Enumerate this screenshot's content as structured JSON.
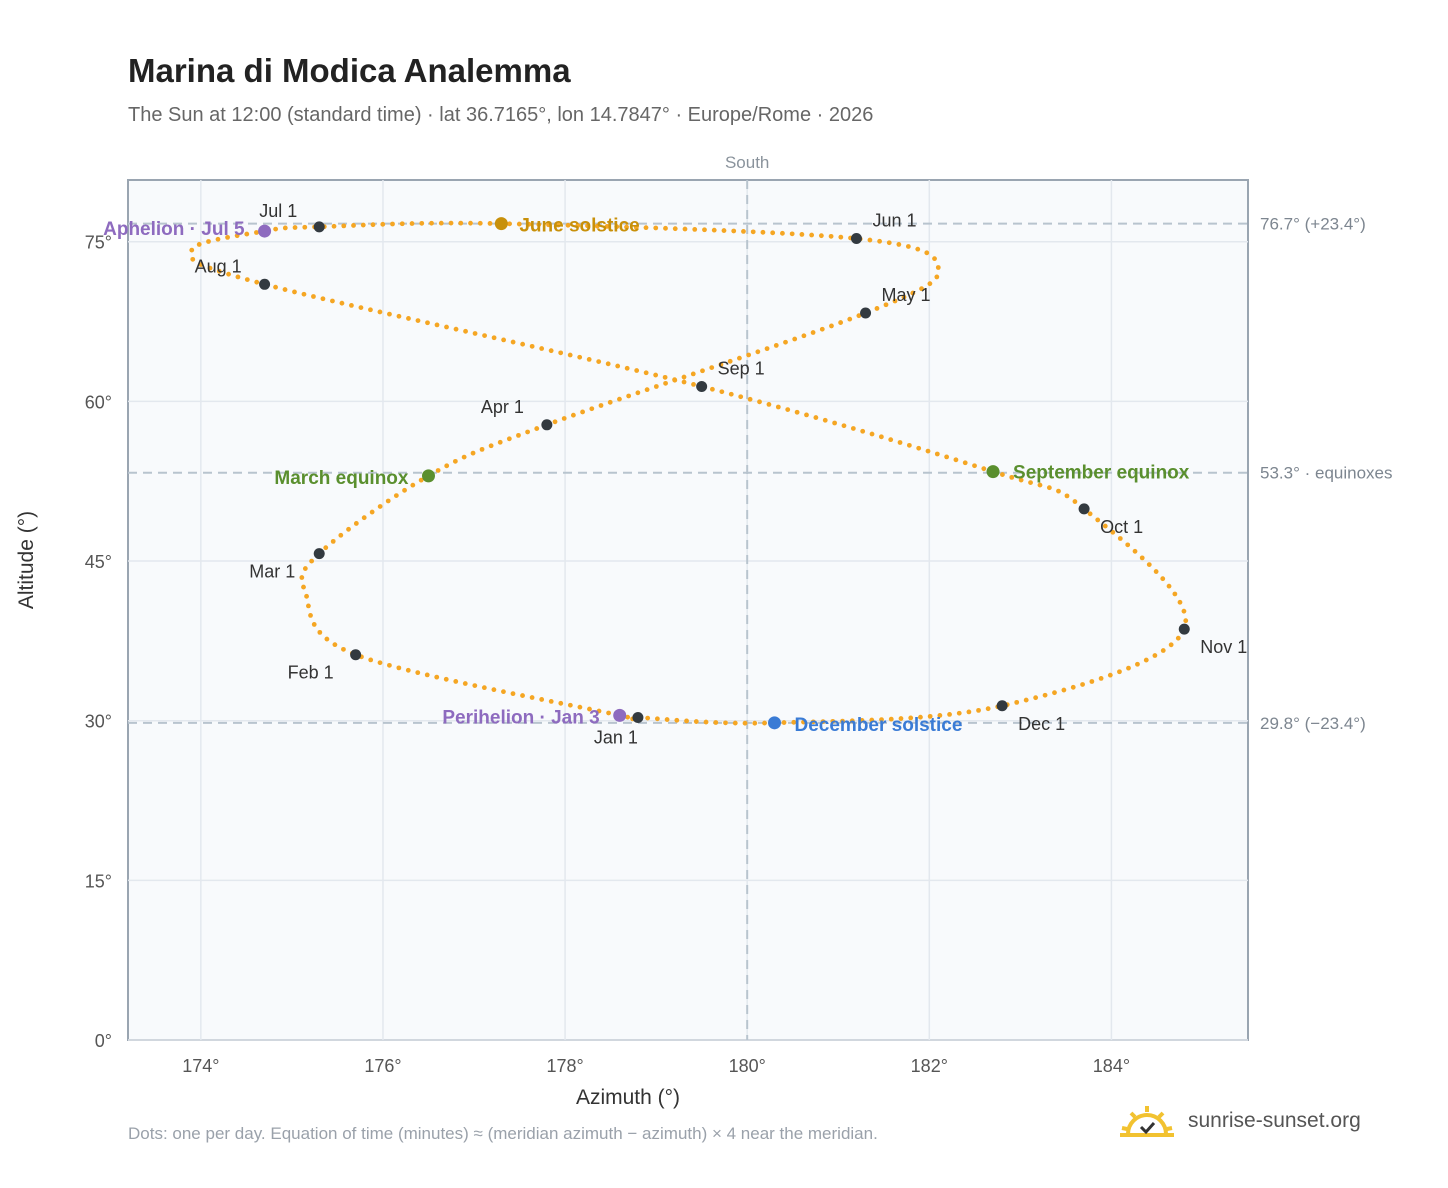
{
  "header": {
    "title": "Marina di Modica Analemma",
    "subtitle": "The Sun at 12:00 (standard time) · lat 36.7165°, lon 14.7847° · Europe/Rome · 2026"
  },
  "footer": {
    "note": "Dots: one per day. Equation of time (minutes) ≈ (meridian azimuth − azimuth) × 4 near the meridian.",
    "brand": "sunrise-sunset.org",
    "brand_icon": "sun-logo-icon"
  },
  "colors": {
    "path": "#f5a623",
    "month_marker": "#333a40",
    "solstice_june": "#c8900a",
    "solstice_december": "#3a7bd5",
    "equinox": "#5a8f2e",
    "apsis": "#8e6bbf",
    "guide": "#b8c4ce",
    "plot_bg": "#f8fafc",
    "frame": "#9aa5b1"
  },
  "chart_data": {
    "type": "scatter",
    "title": "Marina di Modica Analemma",
    "xlabel": "Azimuth (°)",
    "ylabel": "Altitude (°)",
    "xlim": [
      173.2,
      185.5
    ],
    "ylim": [
      0,
      80.8
    ],
    "xticks": [
      174,
      176,
      178,
      180,
      182,
      184
    ],
    "xtick_labels": [
      "174°",
      "176°",
      "178°",
      "180°",
      "182°",
      "184°"
    ],
    "yticks": [
      0,
      15,
      30,
      45,
      60,
      75
    ],
    "ytick_labels": [
      "0°",
      "15°",
      "30°",
      "45°",
      "60°",
      "75°"
    ],
    "grid": true,
    "meridian": {
      "azimuth": 180,
      "label": "South"
    },
    "reference_lines": [
      {
        "altitude": 76.7,
        "label": "76.7° (+23.4°)"
      },
      {
        "altitude": 53.3,
        "label": "53.3° · equinoxes"
      },
      {
        "altitude": 29.8,
        "label": "29.8° (−23.4°)"
      }
    ],
    "month_markers": [
      {
        "label": "Jan 1",
        "az": 178.8,
        "alt": 30.3
      },
      {
        "label": "Feb 1",
        "az": 175.7,
        "alt": 36.2
      },
      {
        "label": "Mar 1",
        "az": 175.3,
        "alt": 45.7
      },
      {
        "label": "Apr 1",
        "az": 177.8,
        "alt": 57.8
      },
      {
        "label": "May 1",
        "az": 181.3,
        "alt": 68.3
      },
      {
        "label": "Jun 1",
        "az": 181.2,
        "alt": 75.3
      },
      {
        "label": "Jul 1",
        "az": 175.3,
        "alt": 76.4
      },
      {
        "label": "Aug 1",
        "az": 174.7,
        "alt": 71.0
      },
      {
        "label": "Sep 1",
        "az": 179.5,
        "alt": 61.4
      },
      {
        "label": "Oct 1",
        "az": 183.7,
        "alt": 49.9
      },
      {
        "label": "Nov 1",
        "az": 184.8,
        "alt": 38.6
      },
      {
        "label": "Dec 1",
        "az": 182.8,
        "alt": 31.4
      }
    ],
    "events": [
      {
        "label": "June solstice",
        "az": 177.3,
        "alt": 76.7,
        "kind": "solstice_june"
      },
      {
        "label": "December solstice",
        "az": 180.3,
        "alt": 29.8,
        "kind": "solstice_december"
      },
      {
        "label": "March equinox",
        "az": 176.5,
        "alt": 53.0,
        "kind": "equinox"
      },
      {
        "label": "September equinox",
        "az": 182.7,
        "alt": 53.4,
        "kind": "equinox"
      },
      {
        "label": "Aphelion · Jul 5",
        "az": 174.7,
        "alt": 76.0,
        "kind": "apsis"
      },
      {
        "label": "Perihelion · Jan 3",
        "az": 178.6,
        "alt": 30.5,
        "kind": "apsis"
      }
    ]
  }
}
